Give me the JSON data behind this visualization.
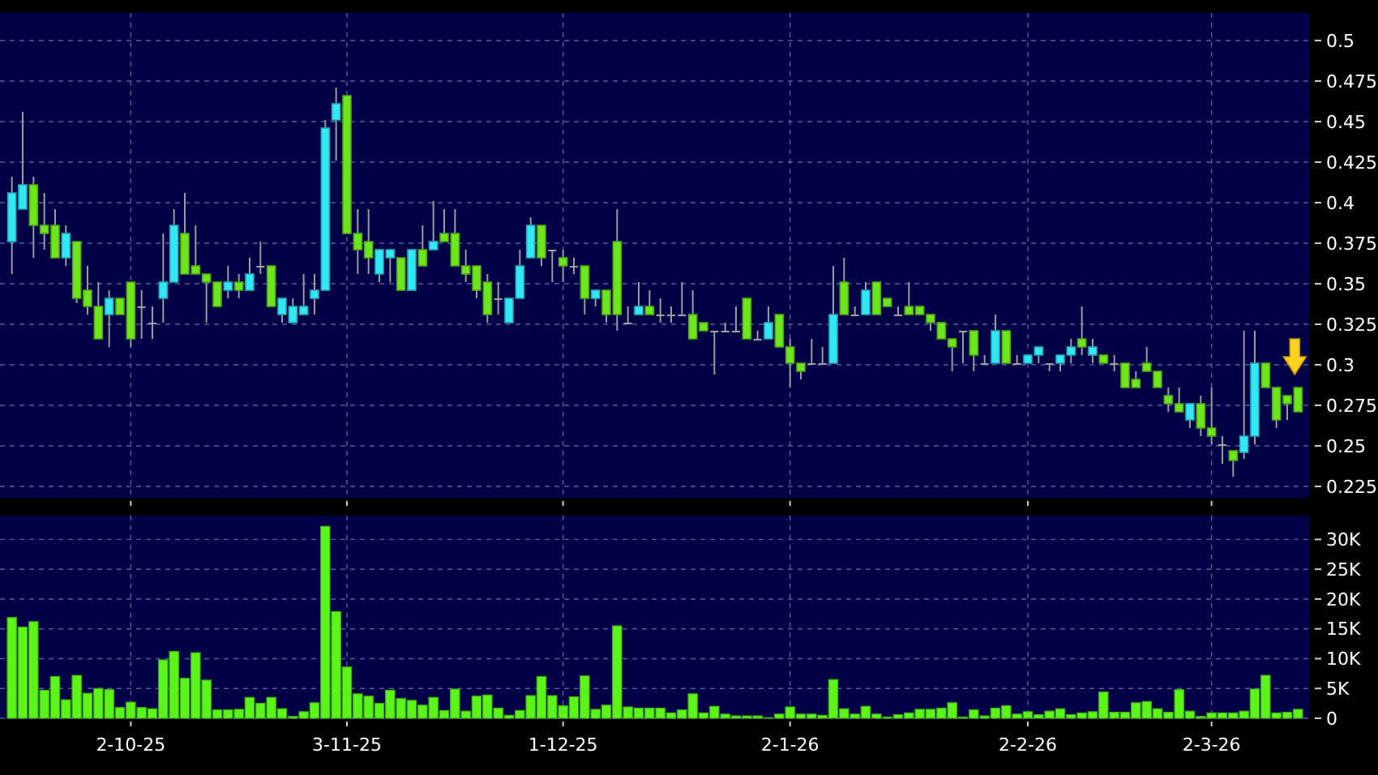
{
  "chart_data": [
    {
      "type": "candlestick",
      "categories": [
        null,
        null,
        null,
        null,
        null,
        null,
        null,
        null,
        null,
        null,
        null,
        null,
        null,
        null,
        null,
        null,
        null,
        null,
        null,
        null,
        null,
        null,
        null,
        null,
        null,
        null,
        null,
        null,
        null,
        null,
        null,
        null,
        null,
        null,
        null,
        null,
        null,
        null,
        null,
        null,
        null,
        null,
        null,
        null,
        null,
        null,
        null,
        null,
        null,
        null,
        null,
        null,
        null,
        null,
        null,
        null,
        null,
        null,
        null,
        null,
        null,
        null,
        null,
        null,
        null,
        null,
        null,
        null,
        null,
        null,
        null,
        null,
        null,
        null,
        null,
        null,
        null,
        null,
        null,
        null,
        null,
        null,
        null,
        null,
        null,
        null,
        null,
        null,
        null,
        null,
        null,
        null,
        null,
        null,
        null,
        null,
        null,
        null,
        null,
        null,
        null,
        null,
        null,
        null,
        null,
        null,
        null,
        null,
        null,
        null,
        null,
        null,
        null,
        null,
        null,
        null,
        null,
        null,
        null,
        null
      ],
      "ohlc": [
        [
          0.376,
          0.416,
          0.356,
          0.406
        ],
        [
          0.396,
          0.456,
          0.396,
          0.411
        ],
        [
          0.411,
          0.416,
          0.366,
          0.386
        ],
        [
          0.386,
          0.406,
          0.371,
          0.381
        ],
        [
          0.386,
          0.396,
          0.366,
          0.366
        ],
        [
          0.366,
          0.386,
          0.361,
          0.381
        ],
        [
          0.376,
          0.376,
          0.338,
          0.341
        ],
        [
          0.346,
          0.361,
          0.331,
          0.336
        ],
        [
          0.336,
          0.351,
          0.316,
          0.316
        ],
        [
          0.331,
          0.346,
          0.311,
          0.341
        ],
        [
          0.341,
          0.341,
          0.331,
          0.331
        ],
        [
          0.351,
          0.351,
          0.311,
          0.316
        ],
        [
          0.336,
          0.346,
          0.316,
          0.336
        ],
        [
          0.326,
          0.336,
          0.316,
          0.326
        ],
        [
          0.341,
          0.381,
          0.326,
          0.351
        ],
        [
          0.351,
          0.396,
          0.351,
          0.386
        ],
        [
          0.381,
          0.406,
          0.356,
          0.356
        ],
        [
          0.361,
          0.386,
          0.356,
          0.356
        ],
        [
          0.356,
          0.356,
          0.326,
          0.351
        ],
        [
          0.351,
          0.351,
          0.336,
          0.336
        ],
        [
          0.346,
          0.361,
          0.341,
          0.351
        ],
        [
          0.351,
          0.356,
          0.341,
          0.346
        ],
        [
          0.346,
          0.366,
          0.346,
          0.356
        ],
        [
          0.361,
          0.376,
          0.356,
          0.361
        ],
        [
          0.361,
          0.361,
          0.336,
          0.336
        ],
        [
          0.331,
          0.341,
          0.326,
          0.341
        ],
        [
          0.326,
          0.341,
          0.326,
          0.336
        ],
        [
          0.331,
          0.356,
          0.331,
          0.336
        ],
        [
          0.341,
          0.356,
          0.331,
          0.346
        ],
        [
          0.346,
          0.451,
          0.346,
          0.446
        ],
        [
          0.451,
          0.471,
          0.426,
          0.461
        ],
        [
          0.466,
          0.466,
          0.381,
          0.381
        ],
        [
          0.381,
          0.396,
          0.356,
          0.371
        ],
        [
          0.376,
          0.396,
          0.356,
          0.366
        ],
        [
          0.356,
          0.371,
          0.351,
          0.371
        ],
        [
          0.366,
          0.371,
          0.351,
          0.371
        ],
        [
          0.366,
          0.366,
          0.346,
          0.346
        ],
        [
          0.346,
          0.371,
          0.346,
          0.371
        ],
        [
          0.371,
          0.386,
          0.361,
          0.361
        ],
        [
          0.371,
          0.401,
          0.371,
          0.376
        ],
        [
          0.381,
          0.396,
          0.376,
          0.376
        ],
        [
          0.381,
          0.396,
          0.361,
          0.361
        ],
        [
          0.361,
          0.371,
          0.351,
          0.356
        ],
        [
          0.361,
          0.361,
          0.341,
          0.346
        ],
        [
          0.351,
          0.356,
          0.326,
          0.331
        ],
        [
          0.341,
          0.351,
          0.331,
          0.341
        ],
        [
          0.326,
          0.341,
          0.326,
          0.341
        ],
        [
          0.341,
          0.371,
          0.341,
          0.361
        ],
        [
          0.366,
          0.391,
          0.366,
          0.386
        ],
        [
          0.386,
          0.386,
          0.361,
          0.366
        ],
        [
          0.371,
          0.371,
          0.351,
          0.371
        ],
        [
          0.366,
          0.371,
          0.351,
          0.361
        ],
        [
          0.361,
          0.366,
          0.356,
          0.361
        ],
        [
          0.361,
          0.361,
          0.331,
          0.341
        ],
        [
          0.341,
          0.346,
          0.336,
          0.346
        ],
        [
          0.346,
          0.346,
          0.326,
          0.331
        ],
        [
          0.376,
          0.396,
          0.321,
          0.331
        ],
        [
          0.326,
          0.336,
          0.326,
          0.326
        ],
        [
          0.331,
          0.351,
          0.331,
          0.336
        ],
        [
          0.336,
          0.346,
          0.331,
          0.331
        ],
        [
          0.331,
          0.341,
          0.326,
          0.331
        ],
        [
          0.331,
          0.336,
          0.326,
          0.331
        ],
        [
          0.331,
          0.351,
          0.331,
          0.331
        ],
        [
          0.331,
          0.346,
          0.316,
          0.316
        ],
        [
          0.326,
          0.326,
          0.321,
          0.321
        ],
        [
          0.321,
          0.321,
          0.294,
          0.321
        ],
        [
          0.321,
          0.326,
          0.321,
          0.321
        ],
        [
          0.321,
          0.336,
          0.321,
          0.321
        ],
        [
          0.341,
          0.341,
          0.316,
          0.316
        ],
        [
          0.316,
          0.321,
          0.316,
          0.316
        ],
        [
          0.316,
          0.336,
          0.316,
          0.326
        ],
        [
          0.331,
          0.331,
          0.311,
          0.311
        ],
        [
          0.311,
          0.316,
          0.286,
          0.301
        ],
        [
          0.301,
          0.301,
          0.291,
          0.296
        ],
        [
          0.301,
          0.316,
          0.301,
          0.301
        ],
        [
          0.301,
          0.311,
          0.301,
          0.301
        ],
        [
          0.301,
          0.361,
          0.301,
          0.331
        ],
        [
          0.351,
          0.366,
          0.331,
          0.331
        ],
        [
          0.331,
          0.336,
          0.331,
          0.331
        ],
        [
          0.331,
          0.351,
          0.331,
          0.346
        ],
        [
          0.351,
          0.351,
          0.331,
          0.331
        ],
        [
          0.341,
          0.341,
          0.336,
          0.336
        ],
        [
          0.331,
          0.336,
          0.331,
          0.331
        ],
        [
          0.336,
          0.351,
          0.331,
          0.331
        ],
        [
          0.336,
          0.336,
          0.331,
          0.331
        ],
        [
          0.331,
          0.331,
          0.321,
          0.326
        ],
        [
          0.326,
          0.326,
          0.316,
          0.316
        ],
        [
          0.316,
          0.316,
          0.296,
          0.311
        ],
        [
          0.321,
          0.321,
          0.301,
          0.321
        ],
        [
          0.321,
          0.321,
          0.296,
          0.306
        ],
        [
          0.301,
          0.306,
          0.301,
          0.301
        ],
        [
          0.301,
          0.331,
          0.301,
          0.321
        ],
        [
          0.321,
          0.321,
          0.301,
          0.301
        ],
        [
          0.301,
          0.306,
          0.301,
          0.301
        ],
        [
          0.301,
          0.306,
          0.301,
          0.306
        ],
        [
          0.306,
          0.311,
          0.301,
          0.311
        ],
        [
          0.301,
          0.301,
          0.296,
          0.301
        ],
        [
          0.301,
          0.306,
          0.296,
          0.306
        ],
        [
          0.306,
          0.316,
          0.301,
          0.311
        ],
        [
          0.316,
          0.336,
          0.306,
          0.311
        ],
        [
          0.306,
          0.316,
          0.301,
          0.311
        ],
        [
          0.306,
          0.306,
          0.301,
          0.301
        ],
        [
          0.301,
          0.306,
          0.296,
          0.301
        ],
        [
          0.301,
          0.301,
          0.286,
          0.286
        ],
        [
          0.291,
          0.296,
          0.286,
          0.286
        ],
        [
          0.301,
          0.311,
          0.296,
          0.296
        ],
        [
          0.296,
          0.296,
          0.286,
          0.286
        ],
        [
          0.281,
          0.286,
          0.271,
          0.276
        ],
        [
          0.276,
          0.286,
          0.271,
          0.271
        ],
        [
          0.266,
          0.276,
          0.261,
          0.276
        ],
        [
          0.276,
          0.281,
          0.256,
          0.261
        ],
        [
          0.261,
          0.286,
          0.251,
          0.256
        ],
        [
          0.251,
          0.256,
          0.239,
          0.251
        ],
        [
          0.247,
          0.247,
          0.231,
          0.241
        ],
        [
          0.246,
          0.321,
          0.242,
          0.256
        ],
        [
          0.256,
          0.321,
          0.251,
          0.301
        ],
        [
          0.301,
          0.301,
          0.286,
          0.286
        ],
        [
          0.286,
          0.286,
          0.261,
          0.266
        ],
        [
          0.281,
          0.281,
          0.266,
          0.276
        ],
        [
          0.286,
          0.286,
          0.271,
          0.271
        ]
      ],
      "colors": [
        "#33e8f5",
        "#33e8f5",
        "#6ee61e",
        "#6ee61e",
        "#6ee61e",
        "#33e8f5",
        "#6ee61e",
        "#6ee61e",
        "#6ee61e",
        "#33e8f5",
        "#6ee61e",
        "#6ee61e",
        "#a0a0a0",
        "#a0a0a0",
        "#33e8f5",
        "#33e8f5",
        "#6ee61e",
        "#6ee61e",
        "#6ee61e",
        "#6ee61e",
        "#33e8f5",
        "#6ee61e",
        "#33e8f5",
        "#a0a0a0",
        "#6ee61e",
        "#33e8f5",
        "#33e8f5",
        "#33e8f5",
        "#33e8f5",
        "#33e8f5",
        "#33e8f5",
        "#6ee61e",
        "#6ee61e",
        "#6ee61e",
        "#33e8f5",
        "#33e8f5",
        "#6ee61e",
        "#33e8f5",
        "#6ee61e",
        "#33e8f5",
        "#6ee61e",
        "#6ee61e",
        "#6ee61e",
        "#6ee61e",
        "#6ee61e",
        "#a0a0a0",
        "#33e8f5",
        "#33e8f5",
        "#33e8f5",
        "#6ee61e",
        "#a0a0a0",
        "#6ee61e",
        "#a0a0a0",
        "#6ee61e",
        "#33e8f5",
        "#6ee61e",
        "#6ee61e",
        "#a0a0a0",
        "#33e8f5",
        "#6ee61e",
        "#a0a0a0",
        "#a0a0a0",
        "#a0a0a0",
        "#6ee61e",
        "#6ee61e",
        "#a0a0a0",
        "#a0a0a0",
        "#a0a0a0",
        "#6ee61e",
        "#a0a0a0",
        "#33e8f5",
        "#6ee61e",
        "#6ee61e",
        "#6ee61e",
        "#a0a0a0",
        "#a0a0a0",
        "#33e8f5",
        "#6ee61e",
        "#a0a0a0",
        "#33e8f5",
        "#6ee61e",
        "#6ee61e",
        "#a0a0a0",
        "#6ee61e",
        "#6ee61e",
        "#6ee61e",
        "#6ee61e",
        "#6ee61e",
        "#a0a0a0",
        "#6ee61e",
        "#a0a0a0",
        "#33e8f5",
        "#6ee61e",
        "#a0a0a0",
        "#33e8f5",
        "#33e8f5",
        "#a0a0a0",
        "#33e8f5",
        "#33e8f5",
        "#6ee61e",
        "#33e8f5",
        "#6ee61e",
        "#a0a0a0",
        "#6ee61e",
        "#6ee61e",
        "#6ee61e",
        "#6ee61e",
        "#6ee61e",
        "#6ee61e",
        "#33e8f5",
        "#6ee61e",
        "#6ee61e",
        "#a0a0a0",
        "#6ee61e",
        "#33e8f5",
        "#33e8f5",
        "#6ee61e",
        "#6ee61e",
        "#6ee61e",
        "#6ee61e"
      ],
      "ylim": [
        0.218,
        0.517
      ],
      "yticks": [
        0.225,
        0.25,
        0.275,
        0.3,
        0.325,
        0.35,
        0.375,
        0.4,
        0.425,
        0.45,
        0.475,
        0.5
      ],
      "grid": true,
      "tick_labels": "y"
    },
    {
      "type": "bar",
      "categories": [
        null,
        null,
        null,
        null,
        null,
        null,
        null,
        null,
        null,
        null,
        null,
        "2-10-25",
        null,
        null,
        null,
        null,
        null,
        null,
        null,
        null,
        null,
        null,
        null,
        null,
        null,
        null,
        null,
        null,
        null,
        null,
        null,
        "3-11-25",
        null,
        null,
        null,
        null,
        null,
        null,
        null,
        null,
        null,
        null,
        null,
        null,
        null,
        null,
        null,
        null,
        null,
        null,
        null,
        "1-12-25",
        null,
        null,
        null,
        null,
        null,
        null,
        null,
        null,
        null,
        null,
        null,
        null,
        null,
        null,
        null,
        null,
        null,
        null,
        null,
        null,
        "2-1-26",
        null,
        null,
        null,
        null,
        null,
        null,
        null,
        null,
        null,
        null,
        null,
        null,
        null,
        null,
        null,
        null,
        null,
        null,
        null,
        null,
        null,
        "2-2-26",
        null,
        null,
        null,
        null,
        null,
        null,
        null,
        null,
        null,
        null,
        null,
        null,
        null,
        null,
        null,
        null,
        "2-3-26",
        null,
        null,
        null,
        null,
        null,
        null,
        null,
        null
      ],
      "values": [
        16900,
        15300,
        16200,
        4700,
        7000,
        3100,
        7200,
        4200,
        5000,
        4800,
        1800,
        2700,
        1800,
        1600,
        9800,
        11200,
        6700,
        11000,
        6400,
        1400,
        1400,
        1500,
        3500,
        2500,
        3500,
        1600,
        300,
        1100,
        2600,
        32200,
        17900,
        8600,
        4100,
        3700,
        2500,
        4700,
        3300,
        3000,
        2200,
        3500,
        1300,
        4900,
        1200,
        3700,
        3900,
        1700,
        500,
        1300,
        3800,
        7000,
        3800,
        2100,
        3600,
        7100,
        1500,
        2200,
        15500,
        1900,
        1700,
        1700,
        1700,
        900,
        1400,
        4100,
        900,
        2000,
        700,
        400,
        400,
        400,
        100,
        700,
        1900,
        700,
        700,
        500,
        6500,
        1600,
        700,
        2000,
        700,
        200,
        600,
        900,
        1500,
        1500,
        1700,
        2600,
        200,
        1400,
        400,
        1700,
        2100,
        700,
        1100,
        600,
        1200,
        1600,
        600,
        900,
        1100,
        4400,
        1000,
        1000,
        2600,
        2800,
        1600,
        1000,
        4800,
        1200,
        300,
        900,
        900,
        900,
        1200,
        4900,
        7200,
        900,
        1000,
        1500
      ],
      "color": "#5cf51a",
      "ylim": [
        0,
        34000
      ],
      "yticks": [
        0,
        {
          "value": 5000,
          "label": "5K"
        },
        {
          "value": 10000,
          "label": "10K"
        },
        {
          "value": 15000,
          "label": "15K"
        },
        {
          "value": 20000,
          "label": "20K"
        },
        {
          "value": 25000,
          "label": "25K"
        },
        {
          "value": 30000,
          "label": "30K"
        }
      ],
      "grid": true
    }
  ]
}
